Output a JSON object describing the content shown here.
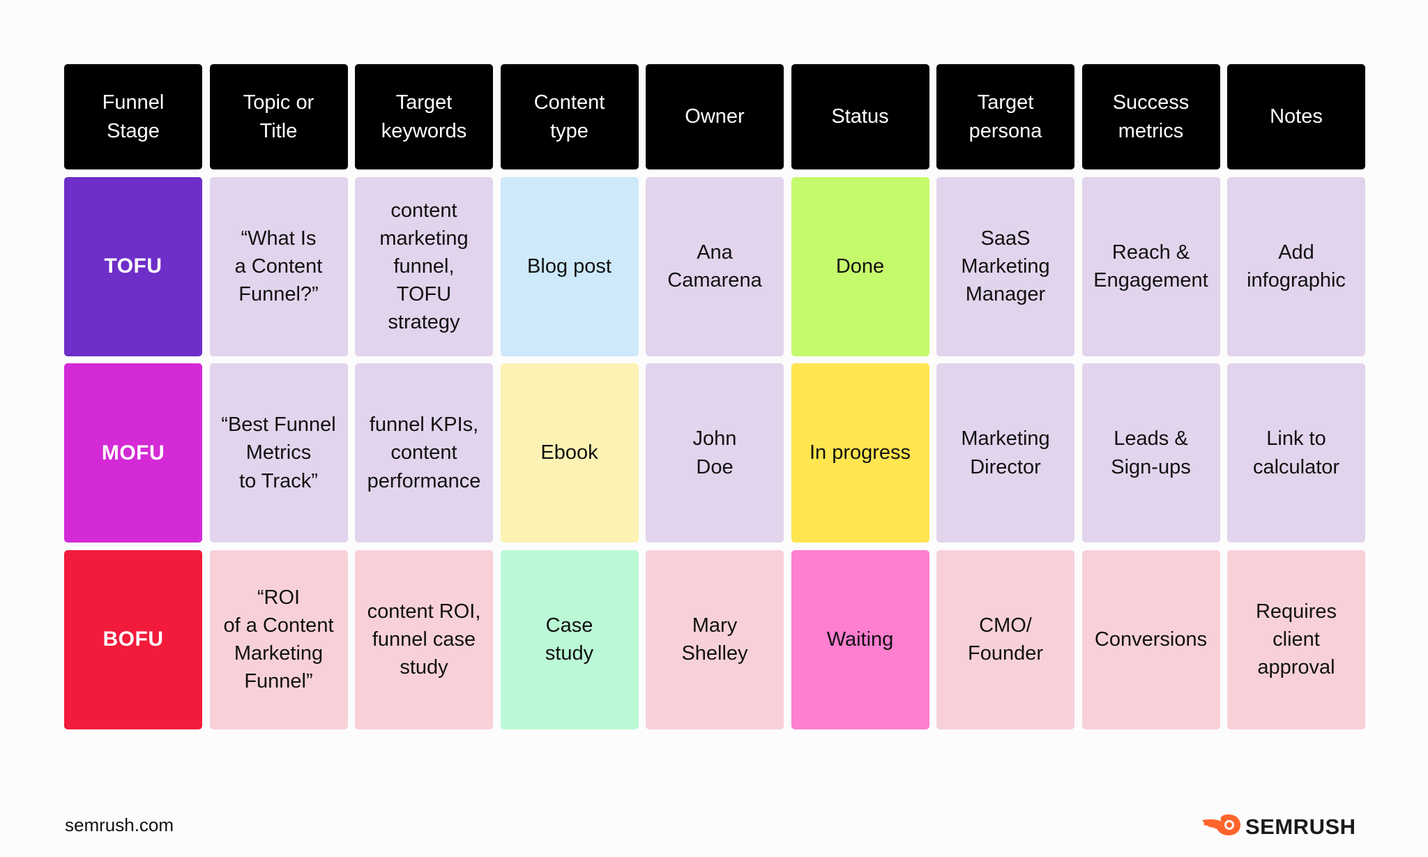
{
  "headers": [
    "Funnel\nStage",
    "Topic or\nTitle",
    "Target\nkeywords",
    "Content\ntype",
    "Owner",
    "Status",
    "Target\npersona",
    "Success\nmetrics",
    "Notes"
  ],
  "rows": [
    {
      "stage": "TOFU",
      "topic": "“What Is\na Content\nFunnel?”",
      "keywords": "content\nmarketing\nfunnel,\nTOFU\nstrategy",
      "content_type": "Blog post",
      "owner": "Ana\nCamarena",
      "status": "Done",
      "persona": "SaaS\nMarketing\nManager",
      "metrics": "Reach &\nEngagement",
      "notes": "Add\ninfographic"
    },
    {
      "stage": "MOFU",
      "topic": "“Best Funnel\nMetrics\nto Track”",
      "keywords": "funnel KPIs,\ncontent\nperformance",
      "content_type": "Ebook",
      "owner": "John\nDoe",
      "status": "In progress",
      "persona": "Marketing\nDirector",
      "metrics": "Leads &\nSign-ups",
      "notes": "Link to\ncalculator"
    },
    {
      "stage": "BOFU",
      "topic": "“ROI\nof a Content\nMarketing\nFunnel”",
      "keywords": "content ROI,\nfunnel case\nstudy",
      "content_type": "Case\nstudy",
      "owner": "Mary\nShelley",
      "status": "Waiting",
      "persona": "CMO/\nFounder",
      "metrics": "Conversions",
      "notes": "Requires\nclient\napproval"
    }
  ],
  "footer": {
    "site": "semrush.com",
    "logo_text": "SEMRUSH"
  },
  "colors": {
    "header_bg": "#000000",
    "tofu_stage": "#6e2ec8",
    "mofu_stage": "#d42ad6",
    "bofu_stage": "#f21b3b",
    "lavender_cell": "#e2d4ec",
    "pink_cell": "#f8d1d8",
    "blog_post": "#cde9fa",
    "ebook": "#fcf2b3",
    "case_study": "#bbf9d6",
    "done": "#c6fa6d",
    "in_progress": "#ffe54f",
    "waiting": "#fe7ed0",
    "logo_orange": "#ff642d"
  }
}
